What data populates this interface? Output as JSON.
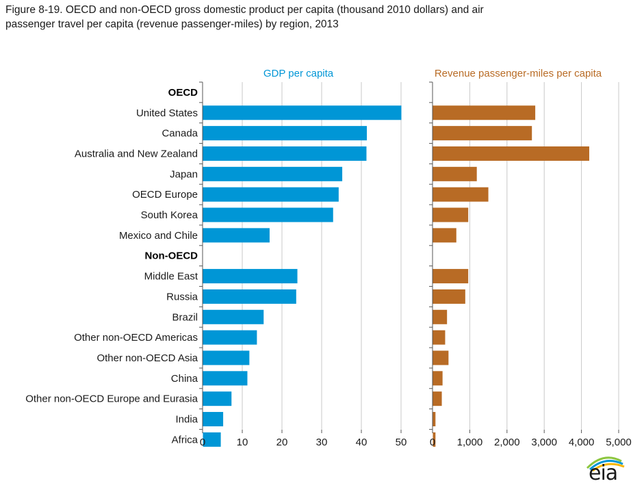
{
  "title": {
    "line1": "Figure 8-19. OECD and non-OECD gross domestic product per capita (thousand 2010 dollars) and air",
    "line2": "passenger travel per capita (revenue passenger-miles) by region, 2013"
  },
  "logo": {
    "text": "eia",
    "icon": "eia-sun-arc-logo"
  },
  "colors": {
    "gdp": "#0096d6",
    "rpm": "#b86b25",
    "grid": "#c8c8c8",
    "axis": "#555555"
  },
  "chart_data": {
    "type": "bar",
    "orientation": "horizontal",
    "groups": [
      {
        "label": "OECD",
        "categories": [
          "United States",
          "Canada",
          "Australia and New Zealand",
          "Japan",
          "OECD Europe",
          "South Korea",
          "Mexico and Chile"
        ]
      },
      {
        "label": "Non-OECD",
        "categories": [
          "Middle East",
          "Russia",
          "Brazil",
          "Other non-OECD Americas",
          "Other non-OECD Asia",
          "China",
          "Other non-OECD Europe and Eurasia",
          "India",
          "Africa"
        ]
      }
    ],
    "categories": [
      "United States",
      "Canada",
      "Australia and New Zealand",
      "Japan",
      "OECD Europe",
      "South Korea",
      "Mexico and Chile",
      "Middle East",
      "Russia",
      "Brazil",
      "Other non-OECD Americas",
      "Other non-OECD Asia",
      "China",
      "Other non-OECD Europe and Eurasia",
      "India",
      "Africa"
    ],
    "series": [
      {
        "name": "GDP per capita",
        "values": [
          50.0,
          41.3,
          41.2,
          35.1,
          34.2,
          32.8,
          16.8,
          23.8,
          23.5,
          15.3,
          13.6,
          11.7,
          11.2,
          7.2,
          5.1,
          4.5
        ],
        "xlim": [
          0,
          50
        ],
        "ticks": [
          0,
          10,
          20,
          30,
          40,
          50
        ],
        "tick_labels": [
          "0",
          "10",
          "20",
          "30",
          "40",
          "50"
        ]
      },
      {
        "name": "Revenue passenger-miles per capita",
        "values": [
          2750,
          2660,
          4200,
          1180,
          1490,
          950,
          630,
          950,
          870,
          380,
          330,
          420,
          260,
          240,
          70,
          70
        ],
        "xlim": [
          0,
          5000
        ],
        "ticks": [
          0,
          1000,
          2000,
          3000,
          4000,
          5000
        ],
        "tick_labels": [
          "0",
          "1,000",
          "2,000",
          "3,000",
          "4,000",
          "5,000"
        ]
      }
    ],
    "grid": true
  }
}
